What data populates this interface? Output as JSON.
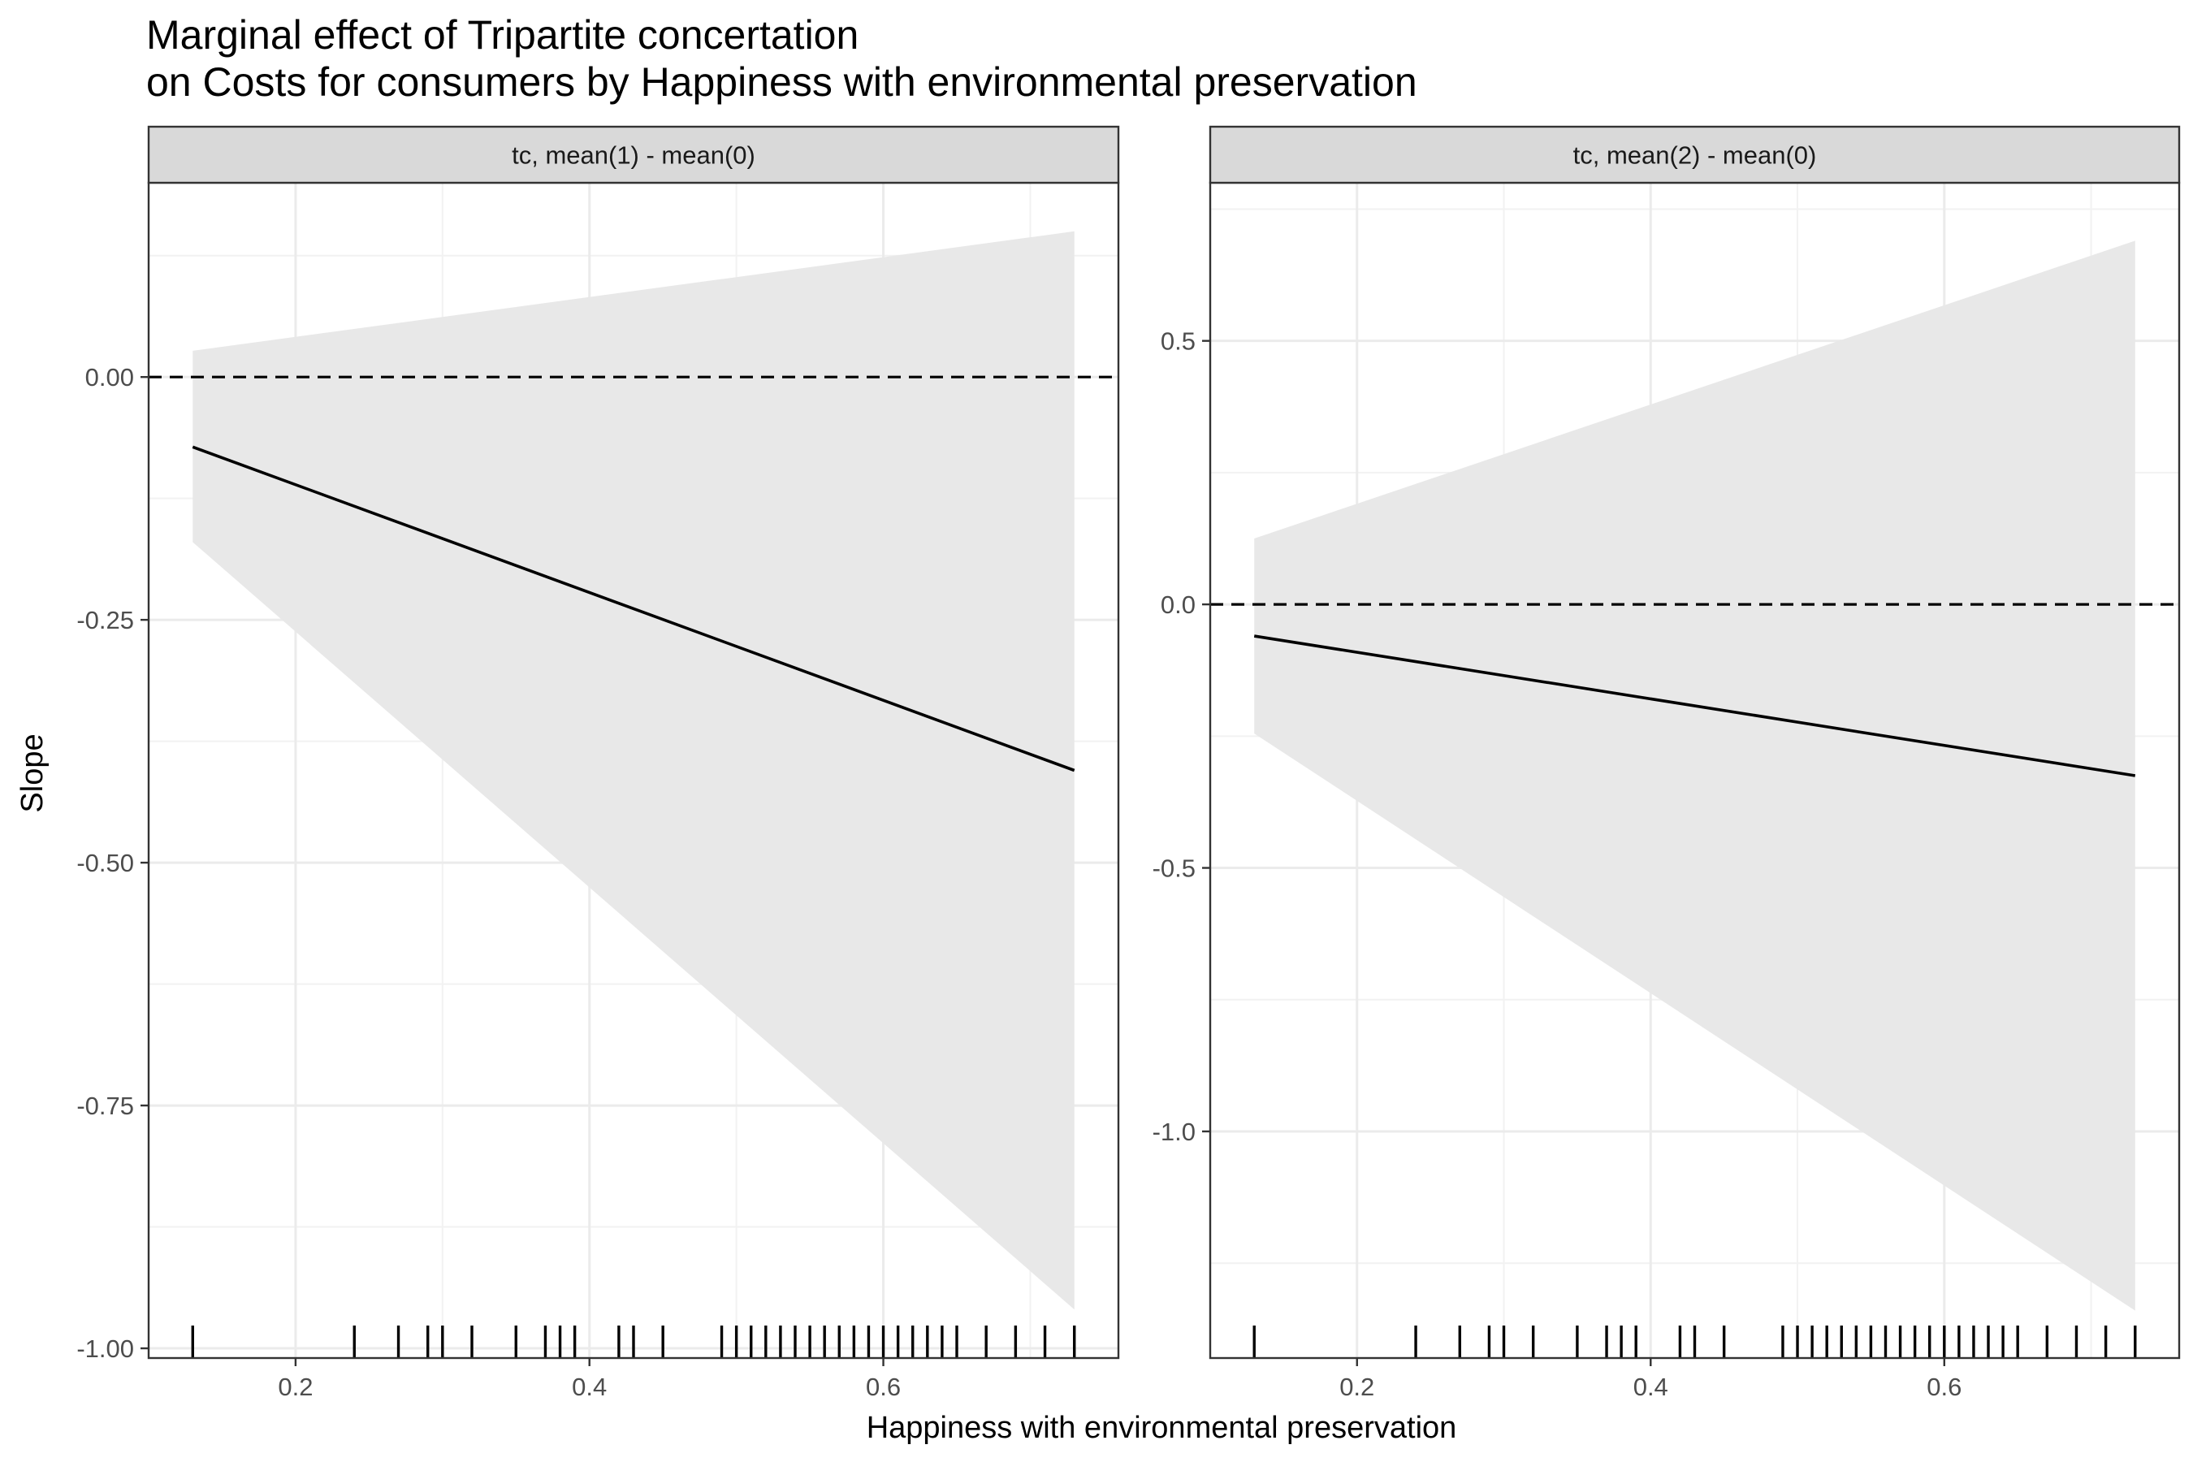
{
  "chart_data": {
    "type": "line",
    "title": "Marginal effect of Tripartite concertation",
    "subtitle": "on Costs for consumers by Happiness with environmental preservation",
    "xlabel": "Happiness with environmental preservation",
    "ylabel": "Slope",
    "grid": true,
    "reference_line": {
      "y": 0,
      "style": "dashed"
    },
    "rug_x": [
      0.13,
      0.24,
      0.27,
      0.29,
      0.3,
      0.32,
      0.35,
      0.37,
      0.38,
      0.39,
      0.42,
      0.43,
      0.45,
      0.49,
      0.5,
      0.51,
      0.52,
      0.53,
      0.54,
      0.55,
      0.56,
      0.57,
      0.58,
      0.59,
      0.6,
      0.61,
      0.62,
      0.63,
      0.64,
      0.65,
      0.67,
      0.69,
      0.71,
      0.73
    ],
    "panels": [
      {
        "strip_label": "tc, mean(1) - mean(0)",
        "xlim": [
          0.1,
          0.76
        ],
        "ylim": [
          -1.01,
          0.2
        ],
        "x_ticks": [
          0.2,
          0.4,
          0.6
        ],
        "x_tick_labels": [
          "0.2",
          "0.4",
          "0.6"
        ],
        "y_ticks": [
          0.0,
          -0.25,
          -0.5,
          -0.75,
          -1.0
        ],
        "y_tick_labels": [
          "0.00",
          "-0.25",
          "-0.50",
          "-0.75",
          "-1.00"
        ],
        "x": [
          0.13,
          0.73
        ],
        "estimate": [
          -0.072,
          -0.405
        ],
        "ci_lower": [
          -0.17,
          -0.96
        ],
        "ci_upper": [
          0.027,
          0.15
        ]
      },
      {
        "strip_label": "tc, mean(2) - mean(0)",
        "xlim": [
          0.1,
          0.76
        ],
        "ylim": [
          -1.43,
          0.8
        ],
        "x_ticks": [
          0.2,
          0.4,
          0.6
        ],
        "x_tick_labels": [
          "0.2",
          "0.4",
          "0.6"
        ],
        "y_ticks": [
          0.5,
          0.0,
          -0.5,
          -1.0
        ],
        "y_tick_labels": [
          "0.5",
          "0.0",
          "-0.5",
          "-1.0"
        ],
        "x": [
          0.13,
          0.73
        ],
        "estimate": [
          -0.06,
          -0.325
        ],
        "ci_lower": [
          -0.245,
          -1.34
        ],
        "ci_upper": [
          0.125,
          0.69
        ]
      }
    ]
  }
}
